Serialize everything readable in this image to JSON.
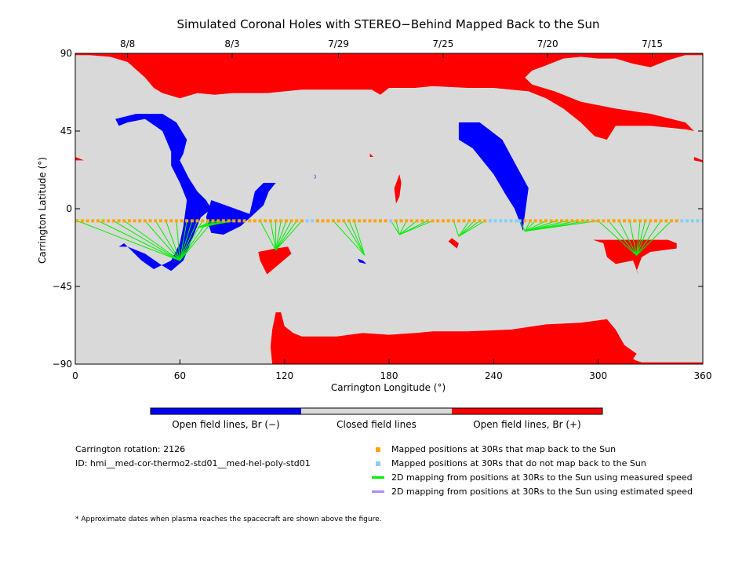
{
  "chart_data": {
    "type": "map",
    "title": "Simulated Coronal Holes with STEREO−Behind Mapped Back to the Sun",
    "xlabel": "Carrington Longitude (°)",
    "ylabel": "Carrington Latitude (°)",
    "xlim": [
      0,
      360
    ],
    "ylim": [
      -90,
      90
    ],
    "x_ticks": [
      0,
      60,
      120,
      180,
      240,
      300,
      360
    ],
    "y_ticks": [
      -90,
      -45,
      0,
      45,
      90
    ],
    "y_tick_labels": [
      "−90",
      "−45",
      "0",
      "45",
      "90"
    ],
    "top_axis_dates": [
      {
        "label": "8/8",
        "lon": 30
      },
      {
        "label": "8/3",
        "lon": 90
      },
      {
        "label": "7/29",
        "lon": 151
      },
      {
        "label": "7/25",
        "lon": 211
      },
      {
        "label": "7/20",
        "lon": 271
      },
      {
        "label": "7/15",
        "lon": 331
      }
    ],
    "colors": {
      "closed": "#d9d9d9",
      "open_negative": "#0000ff",
      "open_positive": "#ff0000",
      "mapped": "#ffa500",
      "unmapped": "#87cefa",
      "measured_speed": "#00ee00",
      "estimated_speed": "#b58aff"
    },
    "colorbar_labels": [
      "Open field lines, Br (−)",
      "Closed field lines",
      "Open field lines, Br (+)"
    ],
    "positive_regions": [
      [
        [
          0,
          90
        ],
        [
          360,
          90
        ],
        [
          360,
          89
        ],
        [
          350,
          89
        ],
        [
          340,
          86
        ],
        [
          330,
          82
        ],
        [
          320,
          84
        ],
        [
          310,
          87
        ],
        [
          300,
          87
        ],
        [
          290,
          88
        ],
        [
          280,
          87
        ],
        [
          270,
          83
        ],
        [
          262,
          80
        ],
        [
          258,
          76
        ],
        [
          262,
          72
        ],
        [
          275,
          68
        ],
        [
          290,
          62
        ],
        [
          310,
          58
        ],
        [
          330,
          55
        ],
        [
          350,
          50
        ],
        [
          355,
          45
        ],
        [
          350,
          46
        ],
        [
          330,
          48
        ],
        [
          310,
          48
        ],
        [
          305,
          40
        ],
        [
          298,
          42
        ],
        [
          290,
          50
        ],
        [
          280,
          58
        ],
        [
          270,
          64
        ],
        [
          260,
          68
        ],
        [
          240,
          70
        ],
        [
          225,
          70
        ],
        [
          205,
          71
        ],
        [
          195,
          70
        ],
        [
          180,
          70
        ],
        [
          175,
          66
        ],
        [
          170,
          69
        ],
        [
          150,
          69
        ],
        [
          130,
          69
        ],
        [
          110,
          67
        ],
        [
          90,
          67
        ],
        [
          80,
          66
        ],
        [
          70,
          67
        ],
        [
          60,
          64
        ],
        [
          50,
          67
        ],
        [
          45,
          70
        ],
        [
          40,
          76
        ],
        [
          30,
          85
        ],
        [
          20,
          88
        ],
        [
          8,
          89
        ],
        [
          0,
          89
        ]
      ],
      [
        [
          0,
          -90
        ],
        [
          360,
          -90
        ],
        [
          360,
          -89
        ],
        [
          325,
          -89
        ],
        [
          322,
          -88
        ],
        [
          320,
          -87
        ],
        [
          322,
          -84
        ],
        [
          315,
          -79
        ],
        [
          310,
          -70
        ],
        [
          305,
          -64
        ],
        [
          290,
          -66
        ],
        [
          270,
          -67
        ],
        [
          250,
          -70
        ],
        [
          225,
          -71
        ],
        [
          205,
          -71
        ],
        [
          195,
          -72
        ],
        [
          180,
          -73
        ],
        [
          165,
          -72
        ],
        [
          150,
          -74
        ],
        [
          140,
          -74
        ],
        [
          130,
          -74
        ],
        [
          125,
          -72
        ],
        [
          120,
          -68
        ],
        [
          118,
          -60
        ],
        [
          115,
          -60
        ],
        [
          113,
          -70
        ],
        [
          112,
          -80
        ],
        [
          113,
          -90
        ]
      ],
      [
        [
          297,
          -18
        ],
        [
          340,
          -18
        ],
        [
          345,
          -20
        ],
        [
          345,
          -23
        ],
        [
          330,
          -25
        ],
        [
          325,
          -28
        ],
        [
          322,
          -36
        ],
        [
          323,
          -38
        ],
        [
          320,
          -30
        ],
        [
          310,
          -32
        ],
        [
          305,
          -28
        ],
        [
          303,
          -20
        ]
      ],
      [
        [
          105,
          -25
        ],
        [
          115,
          -23
        ],
        [
          122,
          -22
        ],
        [
          124,
          -26
        ],
        [
          110,
          -38
        ],
        [
          106,
          -30
        ]
      ],
      [
        [
          216,
          -17
        ],
        [
          220,
          -20
        ],
        [
          219,
          -23
        ],
        [
          214,
          -19
        ]
      ],
      [
        [
          186,
          20
        ],
        [
          187,
          15
        ],
        [
          186,
          7
        ],
        [
          184,
          3
        ],
        [
          183,
          12
        ]
      ],
      [
        [
          169,
          32
        ],
        [
          171,
          30
        ],
        [
          169,
          30
        ]
      ],
      [
        [
          0,
          30
        ],
        [
          5,
          28
        ],
        [
          0,
          28
        ]
      ],
      [
        [
          355,
          30
        ],
        [
          360,
          28
        ],
        [
          360,
          27
        ],
        [
          355,
          28
        ]
      ]
    ],
    "negative_regions": [
      [
        [
          23,
          52
        ],
        [
          35,
          55
        ],
        [
          50,
          55
        ],
        [
          58,
          50
        ],
        [
          64,
          40
        ],
        [
          62,
          32
        ],
        [
          60,
          28
        ],
        [
          65,
          18
        ],
        [
          70,
          10
        ],
        [
          75,
          5
        ],
        [
          78,
          0
        ],
        [
          72,
          -5
        ],
        [
          68,
          -15
        ],
        [
          62,
          -30
        ],
        [
          55,
          -36
        ],
        [
          50,
          -33
        ],
        [
          40,
          -26
        ],
        [
          30,
          -22
        ],
        [
          25,
          -22
        ],
        [
          28,
          -20
        ],
        [
          38,
          -30
        ],
        [
          45,
          -35
        ],
        [
          55,
          -30
        ],
        [
          60,
          -20
        ],
        [
          62,
          -10
        ],
        [
          64,
          5
        ],
        [
          60,
          15
        ],
        [
          55,
          25
        ],
        [
          55,
          33
        ],
        [
          50,
          45
        ],
        [
          40,
          52
        ],
        [
          30,
          50
        ],
        [
          25,
          48
        ]
      ],
      [
        [
          78,
          5
        ],
        [
          100,
          -3
        ],
        [
          103,
          10
        ],
        [
          108,
          15
        ],
        [
          115,
          15
        ],
        [
          111,
          10
        ],
        [
          108,
          2
        ],
        [
          95,
          -10
        ],
        [
          85,
          -15
        ],
        [
          78,
          -14
        ],
        [
          75,
          -5
        ]
      ],
      [
        [
          220,
          50
        ],
        [
          232,
          50
        ],
        [
          245,
          40
        ],
        [
          253,
          25
        ],
        [
          260,
          12
        ],
        [
          258,
          -3
        ],
        [
          257,
          -10
        ],
        [
          257,
          -13
        ],
        [
          252,
          0
        ],
        [
          247,
          8
        ],
        [
          240,
          20
        ],
        [
          228,
          35
        ],
        [
          220,
          40
        ]
      ],
      [
        [
          162,
          -29
        ],
        [
          165,
          -30
        ],
        [
          167,
          -32
        ],
        [
          163,
          -31
        ]
      ],
      [
        [
          137,
          20
        ],
        [
          138,
          19
        ],
        [
          137,
          17
        ],
        [
          138,
          18
        ]
      ]
    ],
    "mapped_track_lat": -7,
    "mapped_points_lon": [
      1,
      4,
      7,
      10,
      13,
      16,
      19,
      22,
      25,
      28,
      31,
      34,
      37,
      40,
      43,
      46,
      49,
      52,
      55,
      58,
      61,
      64,
      67,
      70,
      73,
      76,
      79,
      82,
      85,
      88,
      91,
      94,
      97,
      100,
      103,
      106,
      109,
      112,
      115,
      118,
      121,
      124,
      127,
      130,
      139,
      142,
      145,
      148,
      151,
      154,
      157,
      160,
      163,
      166,
      169,
      172,
      175,
      178,
      184,
      187,
      190,
      193,
      196,
      199,
      202,
      205,
      208,
      211,
      214,
      217,
      220,
      223,
      226,
      229,
      232,
      235,
      258,
      261,
      264,
      267,
      270,
      273,
      276,
      279,
      282,
      285,
      288,
      291,
      294,
      297,
      300,
      303,
      306,
      309,
      312,
      315,
      318,
      321,
      324,
      327,
      330,
      333,
      336,
      339,
      342,
      345
    ],
    "unmapped_points_lon": [
      133,
      136,
      181,
      238,
      241,
      244,
      247,
      250,
      253,
      255,
      348,
      351,
      354,
      357,
      360
    ],
    "mapping_groups": [
      {
        "foot": [
          60,
          -30
        ],
        "from": [
          1,
          13,
          22,
          28,
          40,
          46,
          52,
          58,
          64,
          67,
          70,
          73,
          76,
          79
        ]
      },
      {
        "foot": [
          70,
          -11
        ],
        "from": [
          79,
          82,
          85,
          88,
          91
        ]
      },
      {
        "foot": [
          115,
          -24
        ],
        "from": [
          106,
          112,
          115,
          118,
          121,
          124,
          127,
          130
        ]
      },
      {
        "foot": [
          166,
          -27
        ],
        "from": [
          148,
          154,
          157,
          160
        ]
      },
      {
        "foot": [
          186,
          -15
        ],
        "from": [
          181,
          184,
          190,
          196,
          202,
          205
        ]
      },
      {
        "foot": [
          220,
          -16
        ],
        "from": [
          217,
          226,
          229,
          232,
          235
        ]
      },
      {
        "foot": [
          258,
          -13
        ],
        "from": [
          255,
          261,
          264,
          270,
          276,
          282,
          288,
          294,
          300
        ]
      },
      {
        "foot": [
          322,
          -27
        ],
        "from": [
          300,
          306,
          312,
          318,
          324,
          327,
          330,
          336,
          342
        ]
      }
    ],
    "legend": [
      {
        "label": "Mapped positions at 30Rs that map back to the Sun",
        "type": "square",
        "color": "#ffa500"
      },
      {
        "label": "Mapped positions at 30Rs that do not map back to the Sun",
        "type": "square",
        "color": "#87cefa"
      },
      {
        "label": "2D mapping from positions at 30Rs to the Sun using measured speed",
        "type": "line",
        "color": "#00ee00"
      },
      {
        "label": "2D mapping from positions at 30Rs to the Sun using estimated speed",
        "type": "line",
        "color": "#b58aff"
      }
    ]
  },
  "info": {
    "rotation": "Carrington rotation: 2126",
    "id": "ID: hmi__med-cor-thermo2-std01__med-hel-poly-std01"
  },
  "footnote": "* Approximate dates when plasma reaches the spacecraft are shown above the figure."
}
